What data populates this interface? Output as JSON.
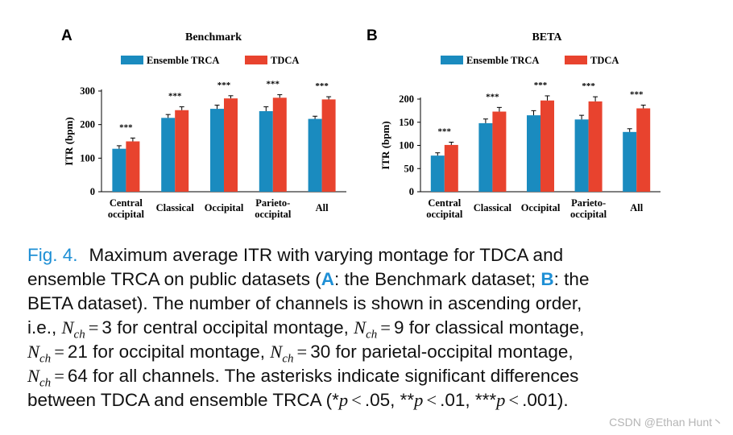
{
  "chart_data": [
    {
      "panel_label": "A",
      "type": "bar",
      "title": "Benchmark",
      "ylabel": "ITR (bpm)",
      "ylim": [
        0,
        300
      ],
      "yticks": [
        "0",
        "100",
        "200",
        "300"
      ],
      "categories": [
        [
          "Central",
          "occipital"
        ],
        [
          "Classical"
        ],
        [
          "Occipital"
        ],
        [
          "Parieto-",
          "occipital"
        ],
        [
          "All"
        ]
      ],
      "series": [
        {
          "name": "Ensemble TRCA",
          "color": "#1a8bbf",
          "values": [
            128,
            220,
            247,
            240,
            217
          ],
          "errors": [
            9,
            10,
            11,
            13,
            8
          ]
        },
        {
          "name": "TDCA",
          "color": "#e8432e",
          "values": [
            150,
            243,
            278,
            280,
            275
          ],
          "errors": [
            10,
            10,
            8,
            9,
            8
          ]
        }
      ],
      "annotations": [
        "***",
        "***",
        "***",
        "***",
        "***"
      ]
    },
    {
      "panel_label": "B",
      "type": "bar",
      "title": "BETA",
      "ylabel": "ITR (bpm)",
      "ylim": [
        0,
        210
      ],
      "yticks": [
        "0",
        "50",
        "100",
        "150",
        "200"
      ],
      "categories": [
        [
          "Central",
          "occipital"
        ],
        [
          "Classical"
        ],
        [
          "Occipital"
        ],
        [
          "Parieto-",
          "occipital"
        ],
        [
          "All"
        ]
      ],
      "series": [
        {
          "name": "Ensemble TRCA",
          "color": "#1a8bbf",
          "values": [
            78,
            148,
            165,
            156,
            129
          ],
          "errors": [
            6,
            9,
            10,
            9,
            7
          ]
        },
        {
          "name": "TDCA",
          "color": "#e8432e",
          "values": [
            101,
            173,
            197,
            195,
            180
          ],
          "errors": [
            6,
            9,
            10,
            10,
            7
          ]
        }
      ],
      "annotations": [
        "***",
        "***",
        "***",
        "***",
        "***"
      ]
    }
  ],
  "caption": {
    "fig_label": "Fig. 4.",
    "l1": "Maximum average ITR with varying montage for TDCA and",
    "l2a": "ensemble TRCA on public datasets (",
    "ref_a": "A",
    "l2b": ": the Benchmark dataset; ",
    "ref_b": "B",
    "l2c": ": the",
    "l3": "BETA dataset). The number of channels is shown in ascending order,",
    "l4a": "i.e., ",
    "n": "N",
    "ch": "ch",
    "eq": "=",
    "v3": "3",
    "l4b": " for central occipital montage, ",
    "v9": "9",
    "l4c": " for classical montage,",
    "v21": "21",
    "l5": " for occipital montage, ",
    "v30": "30",
    "l5b": " for parietal-occipital montage,",
    "v64": "64",
    "l6": " for all channels. The asterisks indicate significant differences",
    "l7a": "between TDCA and ensemble TRCA (",
    "s1": "*",
    "p": "p",
    "lt": "<",
    "t1": ".05, ",
    "s2": "**",
    "t2": ".01, ",
    "s3": "***",
    "t3": ".001)."
  },
  "watermark": "CSDN @Ethan Hunt丶"
}
